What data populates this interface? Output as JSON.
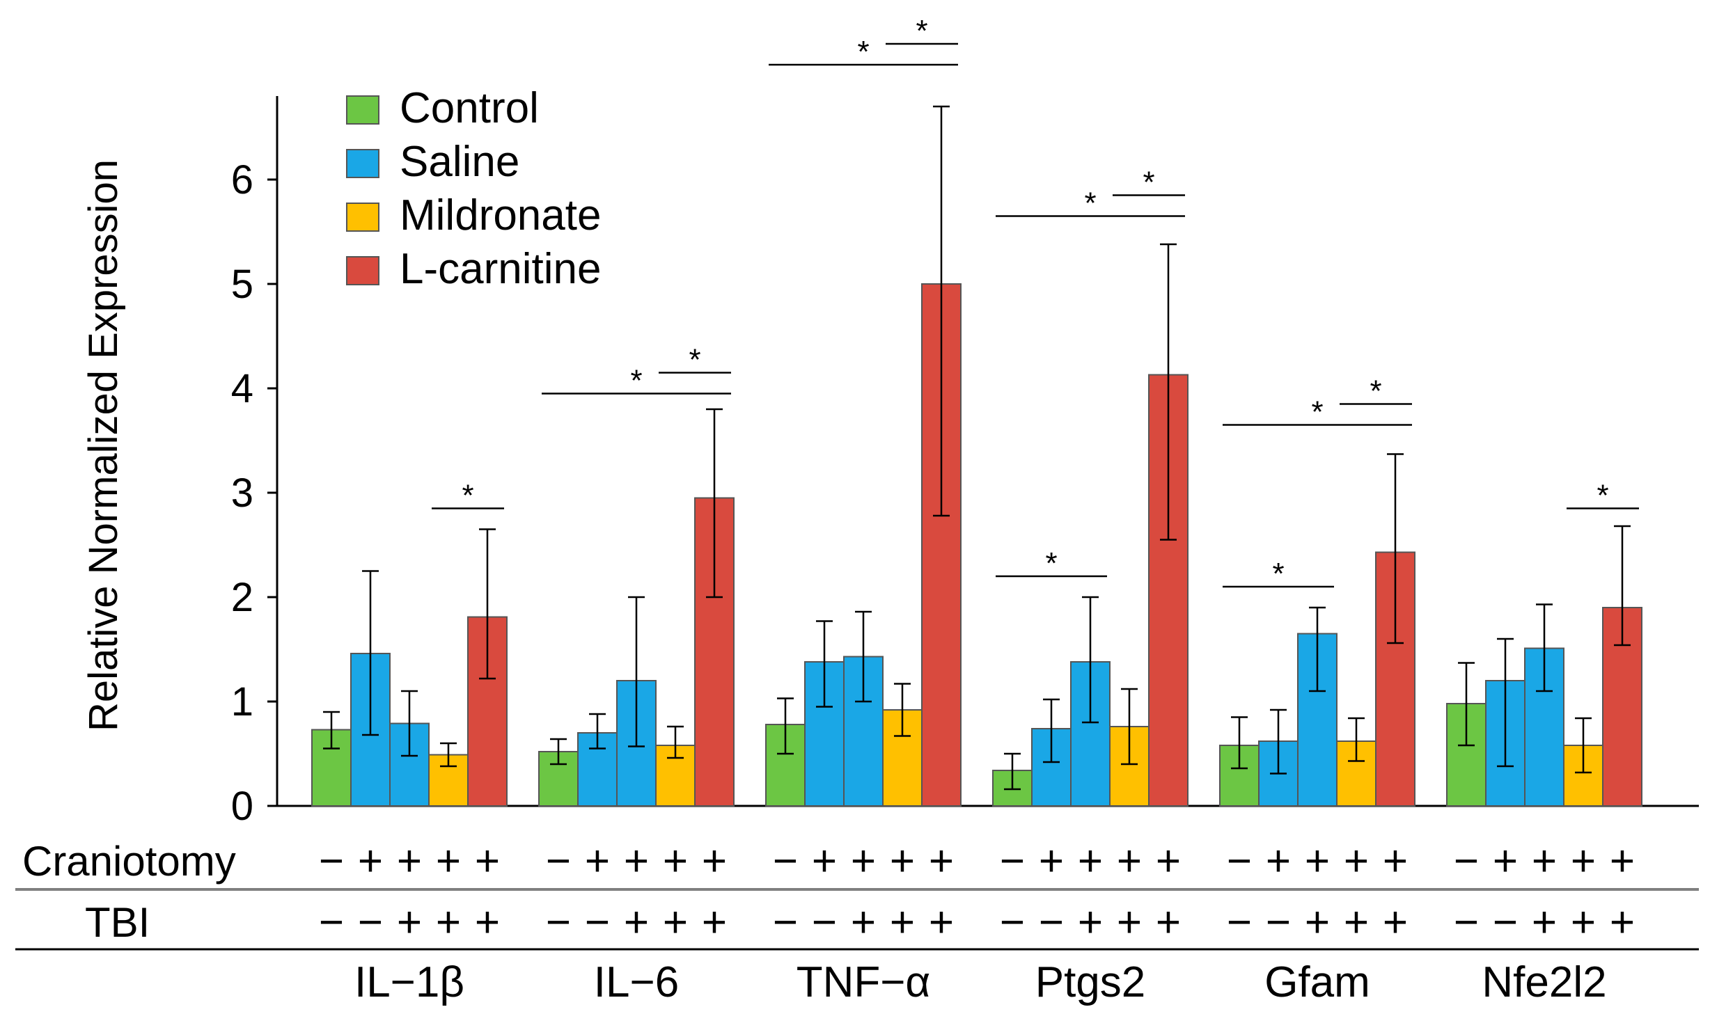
{
  "chart_data": {
    "type": "bar",
    "title": "",
    "xlabel": "",
    "ylabel": "Relative Normalized Expression",
    "ylim": [
      0,
      6.8
    ],
    "yticks": [
      0,
      1,
      2,
      3,
      4,
      5,
      6
    ],
    "grid": false,
    "legend_position": "top-left",
    "series_names": [
      "Control",
      "Saline",
      "Saline",
      "Mildronate",
      "L-carnitine"
    ],
    "legend": [
      {
        "name": "Control",
        "color": "#6cc644"
      },
      {
        "name": "Saline",
        "color": "#1aa7e6"
      },
      {
        "name": "Mildronate",
        "color": "#ffc000"
      },
      {
        "name": "L-carnitine",
        "color": "#d94a3e"
      }
    ],
    "groups": [
      {
        "label": "IL−1β",
        "values": [
          0.73,
          1.46,
          0.79,
          0.49,
          1.81
        ],
        "errors": [
          [
            0.55,
            0.9
          ],
          [
            0.68,
            2.25
          ],
          [
            0.48,
            1.1
          ],
          [
            0.38,
            0.6
          ],
          [
            1.22,
            2.65
          ]
        ]
      },
      {
        "label": "IL−6",
        "values": [
          0.52,
          0.7,
          1.2,
          0.58,
          2.95
        ],
        "errors": [
          [
            0.4,
            0.64
          ],
          [
            0.55,
            0.88
          ],
          [
            0.57,
            2.0
          ],
          [
            0.46,
            0.76
          ],
          [
            2.0,
            3.8
          ]
        ]
      },
      {
        "label": "TNF−α",
        "values": [
          0.78,
          1.38,
          1.43,
          0.92,
          5.0
        ],
        "errors": [
          [
            0.5,
            1.03
          ],
          [
            0.95,
            1.77
          ],
          [
            1.0,
            1.86
          ],
          [
            0.67,
            1.17
          ],
          [
            2.78,
            6.7
          ]
        ]
      },
      {
        "label": "Ptgs2",
        "values": [
          0.34,
          0.74,
          1.38,
          0.76,
          4.13
        ],
        "errors": [
          [
            0.16,
            0.5
          ],
          [
            0.42,
            1.02
          ],
          [
            0.8,
            2.0
          ],
          [
            0.4,
            1.12
          ],
          [
            2.55,
            5.38
          ]
        ]
      },
      {
        "label": "Gfam",
        "values": [
          0.58,
          0.62,
          1.65,
          0.62,
          2.43
        ],
        "errors": [
          [
            0.36,
            0.85
          ],
          [
            0.31,
            0.92
          ],
          [
            1.1,
            1.9
          ],
          [
            0.43,
            0.84
          ],
          [
            1.56,
            3.37
          ]
        ]
      },
      {
        "label": "Nfe2l2",
        "values": [
          0.98,
          1.2,
          1.51,
          0.58,
          1.9
        ],
        "errors": [
          [
            0.58,
            1.37
          ],
          [
            0.38,
            1.6
          ],
          [
            1.1,
            1.93
          ],
          [
            0.32,
            0.84
          ],
          [
            1.54,
            2.68
          ]
        ]
      }
    ],
    "significance": [
      {
        "group": 0,
        "from": 3,
        "to": 4,
        "y": 2.85,
        "label": "*"
      },
      {
        "group": 1,
        "from": 0,
        "to": 4,
        "y": 3.95,
        "label": "*"
      },
      {
        "group": 1,
        "from": 3,
        "to": 4,
        "y": 4.15,
        "label": "*"
      },
      {
        "group": 2,
        "from": 0,
        "to": 4,
        "y": 7.1,
        "label": "*"
      },
      {
        "group": 2,
        "from": 3,
        "to": 4,
        "y": 7.3,
        "label": "*"
      },
      {
        "group": 3,
        "from": 0,
        "to": 2,
        "y": 2.2,
        "label": "*"
      },
      {
        "group": 3,
        "from": 0,
        "to": 4,
        "y": 5.65,
        "label": "*"
      },
      {
        "group": 3,
        "from": 3,
        "to": 4,
        "y": 5.85,
        "label": "*"
      },
      {
        "group": 4,
        "from": 0,
        "to": 2,
        "y": 2.1,
        "label": "*"
      },
      {
        "group": 4,
        "from": 0,
        "to": 4,
        "y": 3.65,
        "label": "*"
      },
      {
        "group": 4,
        "from": 3,
        "to": 4,
        "y": 3.85,
        "label": "*"
      },
      {
        "group": 5,
        "from": 3,
        "to": 4,
        "y": 2.85,
        "label": "*"
      }
    ],
    "conditions": {
      "craniotomy_label": "Craniotomy",
      "tbi_label": "TBI",
      "craniotomy": [
        "−",
        "+",
        "+",
        "+",
        "+"
      ],
      "tbi": [
        "−",
        "−",
        "+",
        "+",
        "+"
      ]
    }
  }
}
